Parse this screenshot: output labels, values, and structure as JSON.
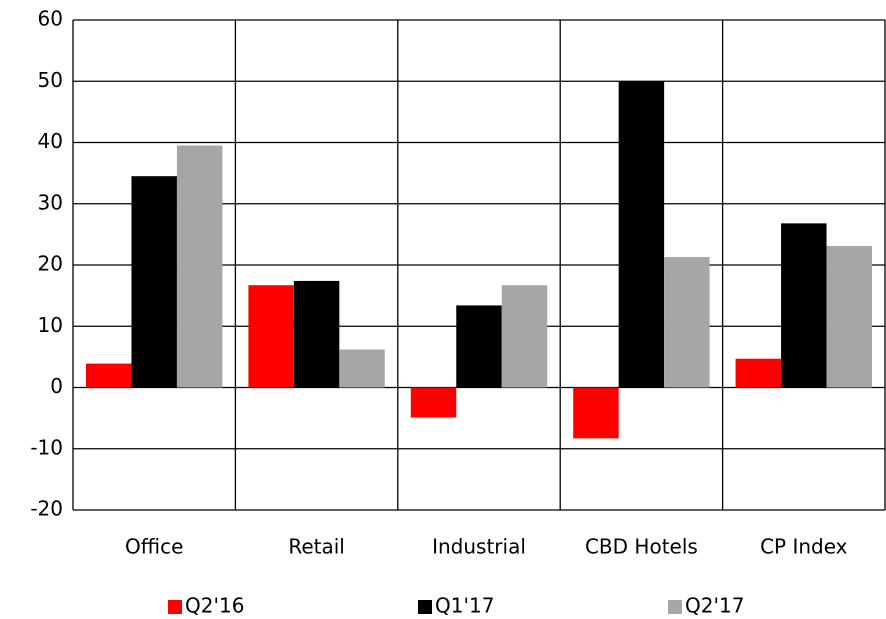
{
  "chart_data": {
    "type": "bar",
    "categories": [
      "Office",
      "Retail",
      "Industrial",
      "CBD Hotels",
      "CP Index"
    ],
    "series": [
      {
        "name": "Q2'16",
        "color": "#ff0000",
        "values": [
          3.9,
          16.7,
          -4.9,
          -8.3,
          4.7
        ]
      },
      {
        "name": "Q1'17",
        "color": "#000000",
        "values": [
          34.5,
          17.4,
          13.4,
          50,
          26.8
        ]
      },
      {
        "name": "Q2'17",
        "color": "#a6a6a6",
        "values": [
          39.5,
          6.2,
          16.7,
          21.3,
          23.1
        ]
      }
    ],
    "ylim": [
      -20,
      60
    ],
    "yticks": [
      -20,
      -10,
      0,
      10,
      20,
      30,
      40,
      50,
      60
    ],
    "grid": true,
    "legend": "bottom"
  }
}
